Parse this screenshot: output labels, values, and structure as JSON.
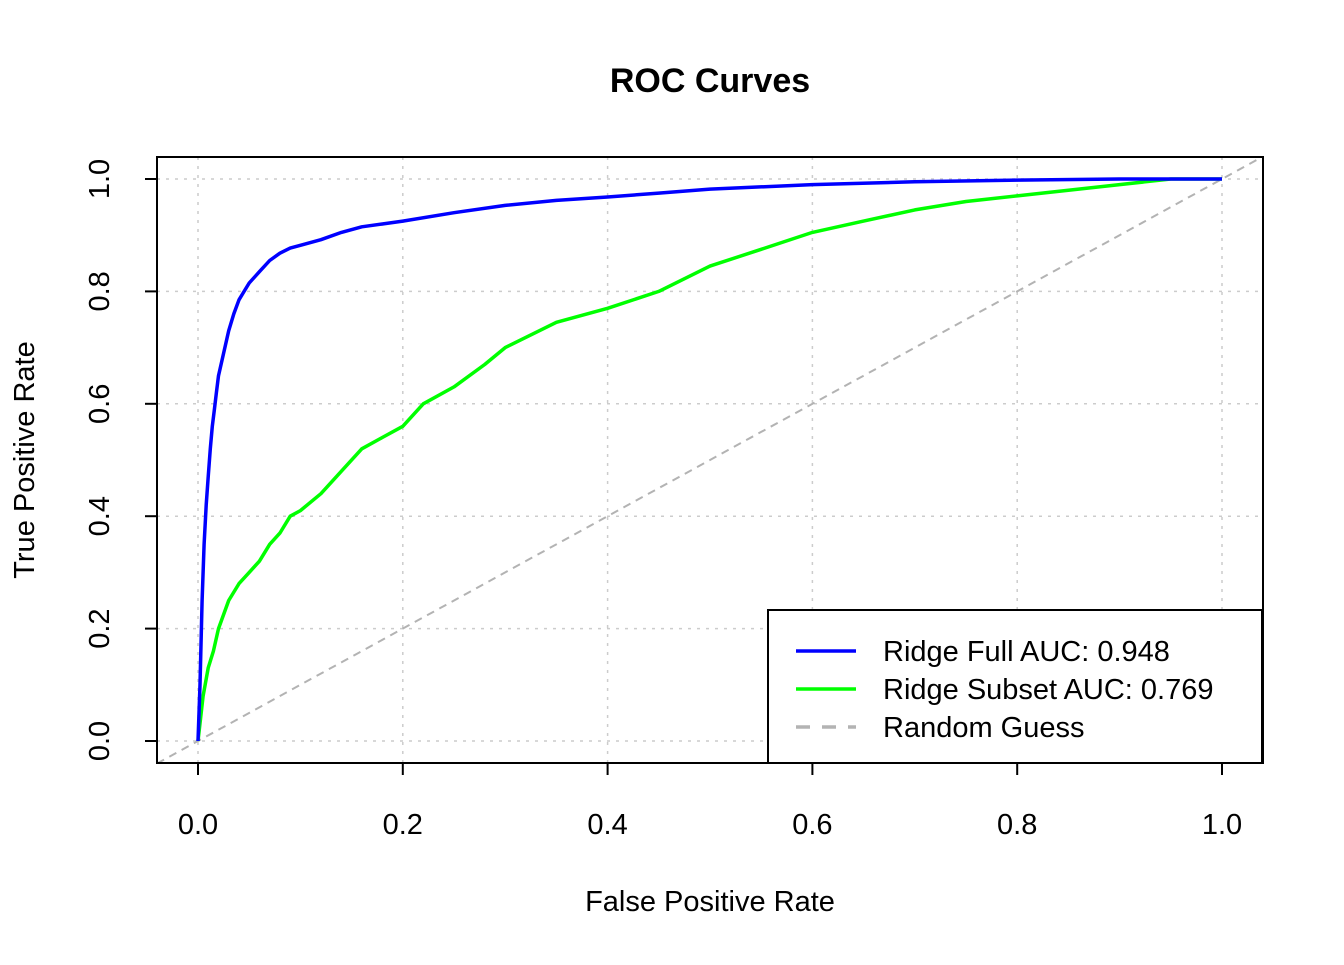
{
  "chart_data": {
    "type": "line",
    "title": "ROC Curves",
    "xlabel": "False Positive Rate",
    "ylabel": "True Positive Rate",
    "xlim": [
      0,
      1
    ],
    "ylim": [
      0,
      1
    ],
    "x_ticks": [
      "0.0",
      "0.2",
      "0.4",
      "0.6",
      "0.8",
      "1.0"
    ],
    "y_ticks": [
      "0.0",
      "0.2",
      "0.4",
      "0.6",
      "0.8",
      "1.0"
    ],
    "grid": true,
    "legend_position": "bottom-right",
    "legend": [
      {
        "label": "Ridge Full AUC: 0.948",
        "color": "#0000ff",
        "style": "solid"
      },
      {
        "label": "Ridge Subset AUC: 0.769",
        "color": "#00ff00",
        "style": "solid"
      },
      {
        "label": "Random Guess",
        "color": "#b3b3b3",
        "style": "dashed"
      }
    ],
    "series": [
      {
        "color": "#0000ff",
        "x": [
          0,
          0.002,
          0.004,
          0.006,
          0.008,
          0.01,
          0.012,
          0.014,
          0.016,
          0.018,
          0.02,
          0.025,
          0.03,
          0.035,
          0.04,
          0.045,
          0.05,
          0.06,
          0.07,
          0.08,
          0.09,
          0.1,
          0.12,
          0.14,
          0.16,
          0.18,
          0.2,
          0.25,
          0.3,
          0.35,
          0.4,
          0.45,
          0.5,
          0.6,
          0.7,
          0.8,
          0.9,
          1.0
        ],
        "y": [
          0,
          0.1,
          0.25,
          0.35,
          0.42,
          0.47,
          0.52,
          0.56,
          0.59,
          0.62,
          0.65,
          0.69,
          0.73,
          0.76,
          0.785,
          0.8,
          0.815,
          0.835,
          0.855,
          0.868,
          0.877,
          0.882,
          0.892,
          0.905,
          0.915,
          0.92,
          0.925,
          0.94,
          0.953,
          0.962,
          0.968,
          0.975,
          0.982,
          0.99,
          0.995,
          0.998,
          1.0,
          1.0
        ]
      },
      {
        "color": "#00ff00",
        "x": [
          0,
          0.005,
          0.01,
          0.015,
          0.02,
          0.03,
          0.04,
          0.05,
          0.06,
          0.07,
          0.08,
          0.09,
          0.1,
          0.12,
          0.14,
          0.16,
          0.18,
          0.2,
          0.22,
          0.25,
          0.28,
          0.3,
          0.35,
          0.4,
          0.45,
          0.5,
          0.55,
          0.6,
          0.65,
          0.7,
          0.75,
          0.8,
          0.85,
          0.9,
          0.95,
          1.0
        ],
        "y": [
          0,
          0.08,
          0.13,
          0.16,
          0.2,
          0.25,
          0.28,
          0.3,
          0.32,
          0.35,
          0.37,
          0.4,
          0.41,
          0.44,
          0.48,
          0.52,
          0.54,
          0.56,
          0.6,
          0.63,
          0.67,
          0.7,
          0.745,
          0.77,
          0.8,
          0.845,
          0.875,
          0.905,
          0.925,
          0.945,
          0.96,
          0.97,
          0.98,
          0.99,
          1.0,
          1.0
        ]
      },
      {
        "color": "#b3b3b3",
        "x": [
          0,
          1
        ],
        "y": [
          0,
          1
        ]
      }
    ]
  }
}
